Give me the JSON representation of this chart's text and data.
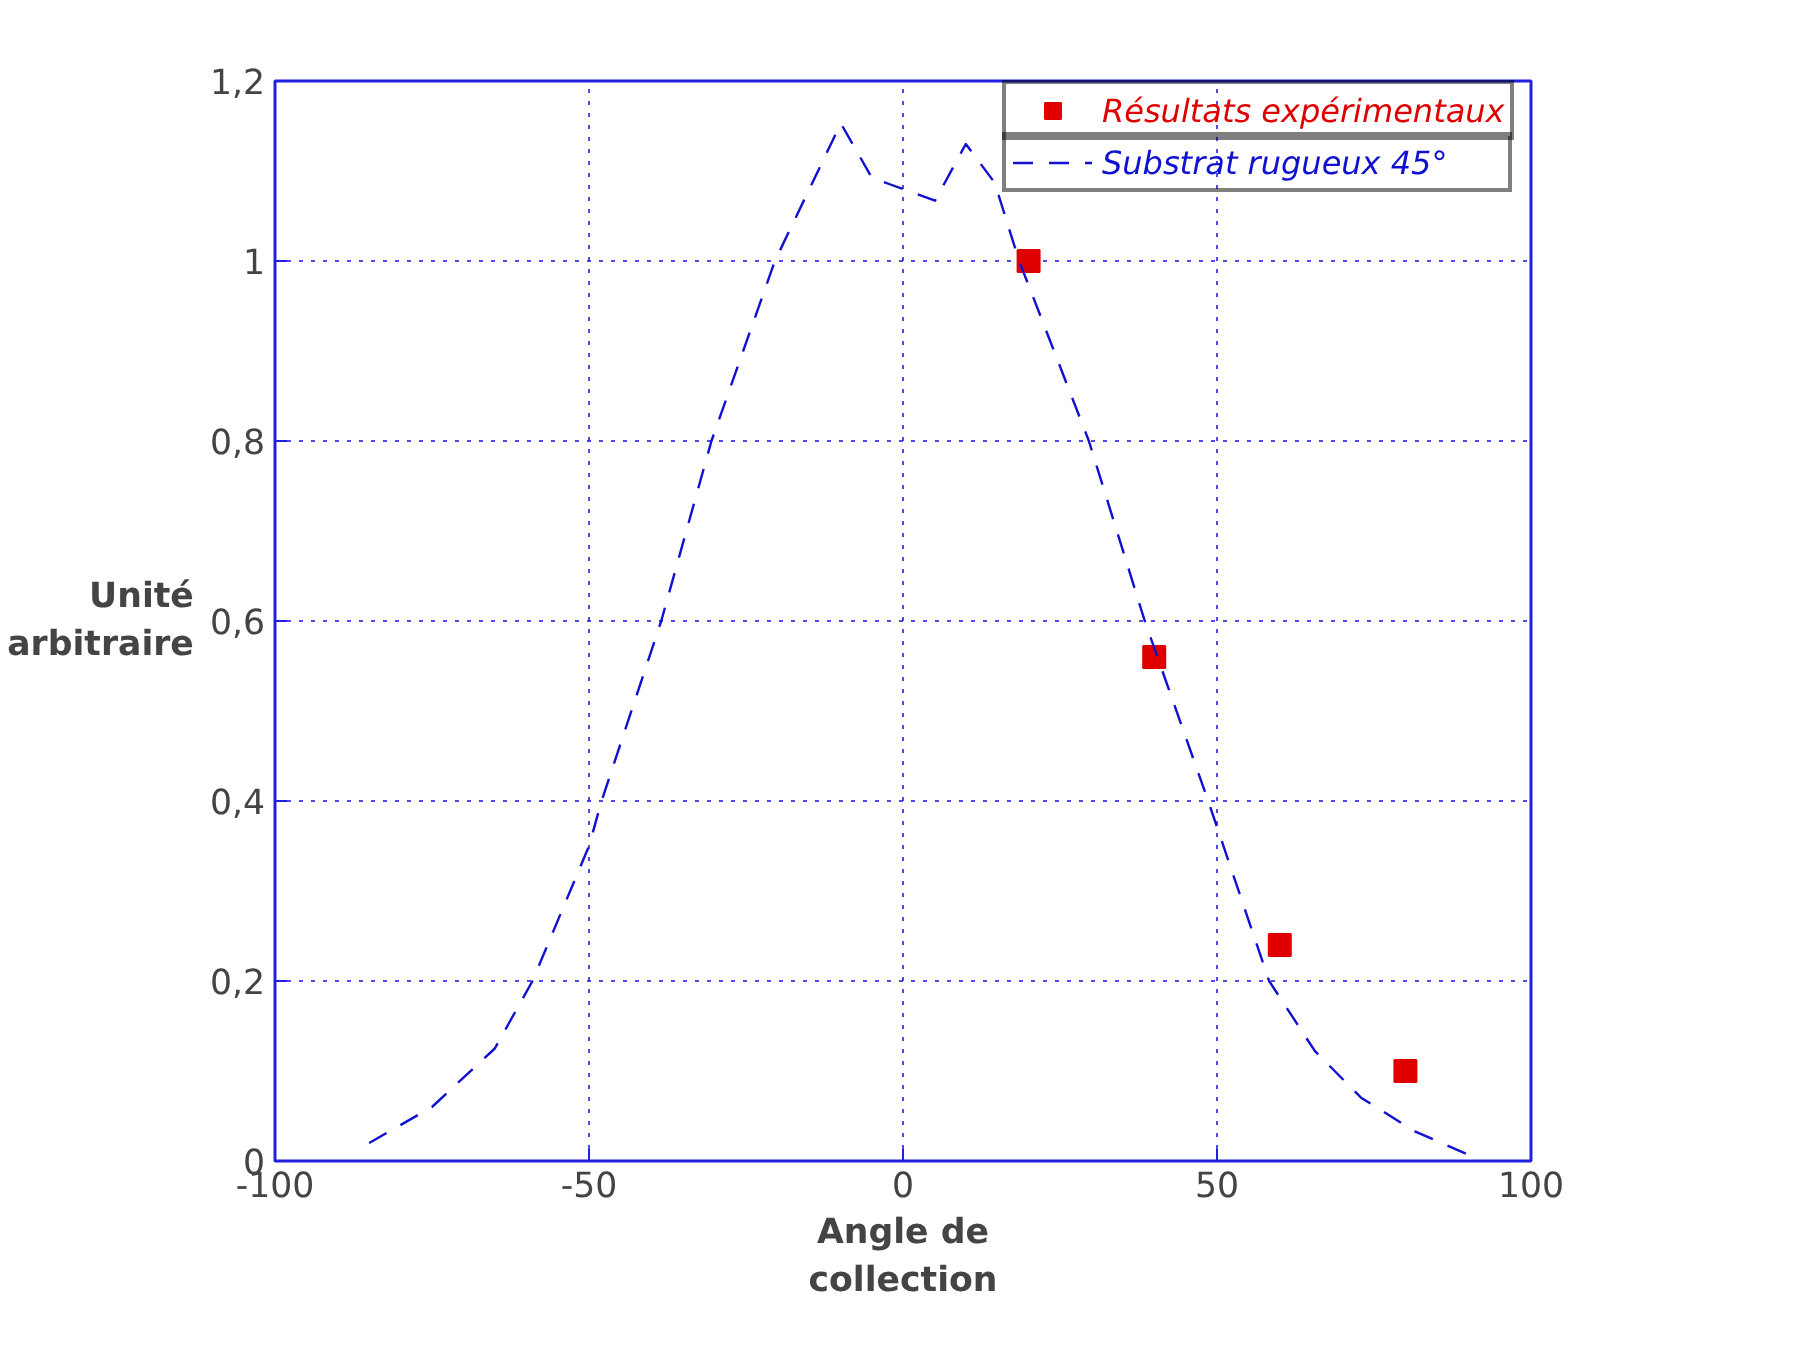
{
  "chart_data": {
    "type": "line",
    "xlabel": "Angle de\ncollection",
    "ylabel": "Unité\narbitraire",
    "xlim": [
      -100,
      100
    ],
    "ylim": [
      0,
      1.2
    ],
    "xticks": [
      -100,
      -50,
      0,
      50,
      100
    ],
    "yticks": [
      0,
      {
        "value": 0.2,
        "label": "0,2"
      },
      {
        "value": 0.4,
        "label": "0,4"
      },
      {
        "value": 0.6,
        "label": "0,6"
      },
      {
        "value": 0.8,
        "label": "0,8"
      },
      1,
      {
        "value": 1.2,
        "label": "1,2"
      }
    ],
    "grid": true,
    "legend": "top right",
    "series": [
      {
        "name": "Résultats expérimentaux",
        "type": "scatter",
        "marker": "square",
        "color": "#e00000",
        "x": [
          20,
          40,
          60,
          80
        ],
        "values": [
          1.0,
          0.56,
          0.24,
          0.1
        ]
      },
      {
        "name": "Substrat rugueux 45°",
        "line_style": "dashed",
        "color": "#1010d0",
        "x": [
          -85,
          -75,
          -65,
          -59,
          -50,
          -48,
          -38.5,
          -30.5,
          -20.4,
          -9.9,
          -5,
          -2,
          5.1,
          10,
          14.6,
          18.5,
          29.6,
          38.5,
          48.6,
          58.3,
          65.6,
          73,
          81.5,
          90
        ],
        "values": [
          0.02,
          0.06,
          0.125,
          0.2,
          0.35,
          0.4,
          0.6,
          0.8,
          1.0,
          1.153,
          1.093,
          1.085,
          1.067,
          1.13,
          1.087,
          1.0,
          0.8,
          0.6,
          0.4,
          0.2,
          0.122,
          0.07,
          0.033,
          0.007
        ]
      }
    ]
  }
}
